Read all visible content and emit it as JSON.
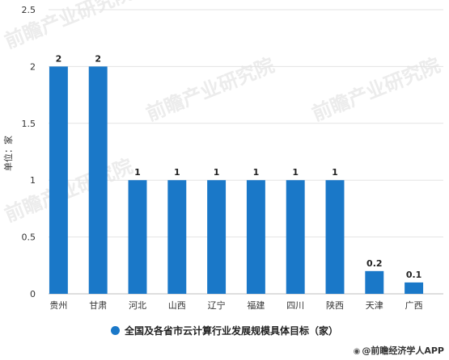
{
  "chart_data": {
    "type": "bar",
    "categories": [
      "贵州",
      "甘肃",
      "河北",
      "山西",
      "辽宁",
      "福建",
      "四川",
      "陕西",
      "天津",
      "广西"
    ],
    "values": [
      2,
      2,
      1,
      1,
      1,
      1,
      1,
      1,
      0.2,
      0.1
    ],
    "value_labels": [
      "2",
      "2",
      "1",
      "1",
      "1",
      "1",
      "1",
      "1",
      "0.2",
      "0.1"
    ],
    "ylabel": "单位：家",
    "ylim": [
      0,
      2.5
    ],
    "yticks": [
      "0",
      "0.5",
      "1",
      "1.5",
      "2",
      "2.5"
    ],
    "grid": true,
    "legend": "全国及各省市云计算行业发展规模具体目标（家）",
    "legend_position": "bottom",
    "bar_color": "#1a78c8"
  },
  "source": "@前瞻经济学人APP",
  "watermarks": [
    "前瞻产业研究院",
    "前瞻产业研究院",
    "前瞻产业研究院",
    "前瞻产业研究院"
  ]
}
